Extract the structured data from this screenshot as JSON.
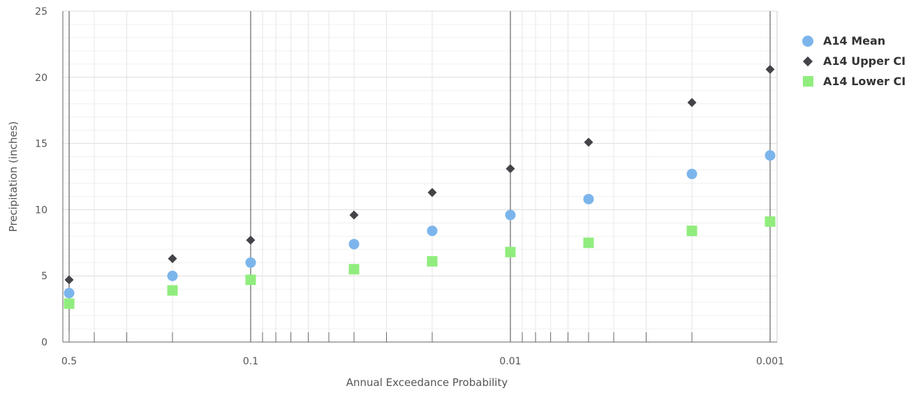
{
  "chart_data": {
    "type": "scatter",
    "xscale": "log-reversed",
    "x": [
      0.5,
      0.2,
      0.1,
      0.04,
      0.02,
      0.01,
      0.005,
      0.002,
      0.001
    ],
    "xlim": [
      0.5,
      0.001
    ],
    "ylim": [
      0,
      25
    ],
    "xlabel": "Annual Exceedance Probability",
    "ylabel": "Precipitation (inches)",
    "x_tick_values": [
      0.5,
      0.1,
      0.01,
      0.001
    ],
    "x_tick_labels": [
      "0.5",
      "0.1",
      "0.01",
      "0.001"
    ],
    "y_ticks": [
      "0",
      "5",
      "10",
      "15",
      "20",
      "25"
    ],
    "grid": true,
    "legend_position": "top-right",
    "series": [
      {
        "name": "A14 Mean",
        "marker": "circle",
        "color": "#7cb5ec",
        "values": [
          3.7,
          5.0,
          6.0,
          7.4,
          8.4,
          9.6,
          10.8,
          12.7,
          14.1
        ]
      },
      {
        "name": "A14 Upper CI",
        "marker": "diamond",
        "color": "#434348",
        "values": [
          4.7,
          6.3,
          7.7,
          9.6,
          11.3,
          13.1,
          15.1,
          18.1,
          20.6
        ]
      },
      {
        "name": "A14 Lower CI",
        "marker": "square",
        "color": "#90ed7d",
        "values": [
          2.9,
          3.9,
          4.7,
          5.5,
          6.1,
          6.8,
          7.5,
          8.4,
          9.1
        ]
      }
    ]
  }
}
